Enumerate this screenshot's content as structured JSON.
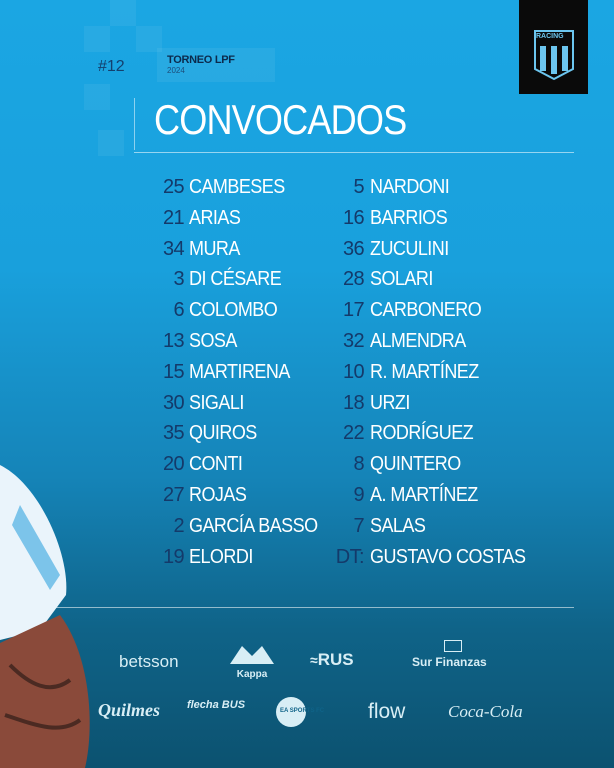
{
  "header": {
    "round": "#12",
    "tournament": "TORNEO LPF",
    "year": "2024",
    "title": "CONVOCADOS",
    "club_badge_text": "RACING"
  },
  "squad": {
    "left": [
      {
        "number": "25",
        "name": "CAMBESES"
      },
      {
        "number": "21",
        "name": "ARIAS"
      },
      {
        "number": "34",
        "name": "MURA"
      },
      {
        "number": "3",
        "name": "DI CÉSARE"
      },
      {
        "number": "6",
        "name": "COLOMBO"
      },
      {
        "number": "13",
        "name": "SOSA"
      },
      {
        "number": "15",
        "name": "MARTIRENA"
      },
      {
        "number": "30",
        "name": "SIGALI"
      },
      {
        "number": "35",
        "name": "QUIROS"
      },
      {
        "number": "20",
        "name": "CONTI"
      },
      {
        "number": "27",
        "name": "ROJAS"
      },
      {
        "number": "2",
        "name": "GARCÍA BASSO"
      },
      {
        "number": "19",
        "name": "ELORDI"
      }
    ],
    "right": [
      {
        "number": "5",
        "name": "NARDONI"
      },
      {
        "number": "16",
        "name": "BARRIOS"
      },
      {
        "number": "36",
        "name": "ZUCULINI"
      },
      {
        "number": "28",
        "name": "SOLARI"
      },
      {
        "number": "17",
        "name": "CARBONERO"
      },
      {
        "number": "32",
        "name": "ALMENDRA"
      },
      {
        "number": "10",
        "name": "R. MARTÍNEZ"
      },
      {
        "number": "18",
        "name": "URZI"
      },
      {
        "number": "22",
        "name": "RODRÍGUEZ"
      },
      {
        "number": "8",
        "name": "QUINTERO"
      },
      {
        "number": "9",
        "name": "A. MARTÍNEZ"
      },
      {
        "number": "7",
        "name": "SALAS"
      },
      {
        "number": "DT:",
        "name": "GUSTAVO COSTAS"
      }
    ]
  },
  "sponsors": {
    "row1": [
      "betsson",
      "Kappa",
      "RUS",
      "Sur Finanzas"
    ],
    "row2": [
      "Quilmes",
      "flecha BUS",
      "EA SPORTS FC",
      "flow",
      "Coca-Cola"
    ]
  },
  "colors": {
    "background_top": "#1ba6e3",
    "background_bottom": "#0c5270",
    "number": "#143a6a",
    "badge": "#0a0a0a"
  }
}
